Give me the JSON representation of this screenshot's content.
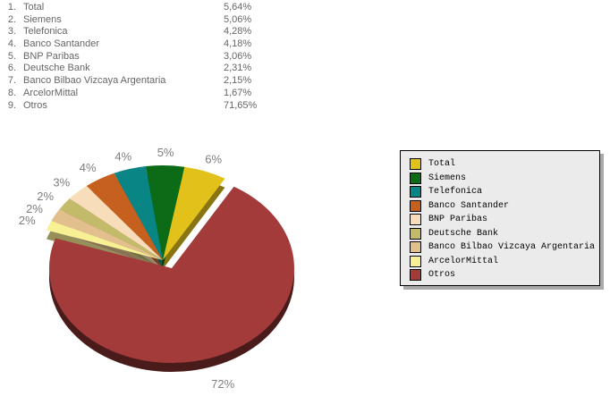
{
  "chart_data": {
    "type": "pie",
    "style": "3d-exploded-pie",
    "legend_position": "right",
    "value_format": "percent-comma-decimal",
    "slices": [
      {
        "rank": "1.",
        "label": "Total",
        "value": 5.64,
        "display_value": "5,64%",
        "rounded_label": "6%",
        "color": "#E2C11A",
        "exploded": false
      },
      {
        "rank": "2.",
        "label": "Siemens",
        "value": 5.06,
        "display_value": "5,06%",
        "rounded_label": "5%",
        "color": "#0B6B16",
        "exploded": false
      },
      {
        "rank": "3.",
        "label": "Telefonica",
        "value": 4.28,
        "display_value": "4,28%",
        "rounded_label": "4%",
        "color": "#0A8585",
        "exploded": false
      },
      {
        "rank": "4.",
        "label": "Banco Santander",
        "value": 4.18,
        "display_value": "4,18%",
        "rounded_label": "4%",
        "color": "#C6601F",
        "exploded": false
      },
      {
        "rank": "5.",
        "label": "BNP Paribas",
        "value": 3.06,
        "display_value": "3,06%",
        "rounded_label": "3%",
        "color": "#F8DDBA",
        "exploded": false
      },
      {
        "rank": "6.",
        "label": "Deutsche Bank",
        "value": 2.31,
        "display_value": "2,31%",
        "rounded_label": "2%",
        "color": "#C3BB6A",
        "exploded": false
      },
      {
        "rank": "7.",
        "label": "Banco Bilbao Vizcaya Argentaria",
        "value": 2.15,
        "display_value": "2,15%",
        "rounded_label": "2%",
        "color": "#E3BF8D",
        "exploded": false
      },
      {
        "rank": "8.",
        "label": "ArcelorMittal",
        "value": 1.67,
        "display_value": "1,67%",
        "rounded_label": "2%",
        "color": "#F8F095",
        "exploded": false
      },
      {
        "rank": "9.",
        "label": "Otros",
        "value": 71.65,
        "display_value": "71,65%",
        "rounded_label": "72%",
        "color": "#A33B3B",
        "exploded": true
      }
    ],
    "colors": {
      "slice_label_text": "#7E7E7E",
      "ranking_text": "#666666",
      "legend_bg": "#EBEBEB",
      "legend_border": "#000000",
      "legend_shadow": "#A9A9A9",
      "background": "#FFFFFF"
    }
  }
}
